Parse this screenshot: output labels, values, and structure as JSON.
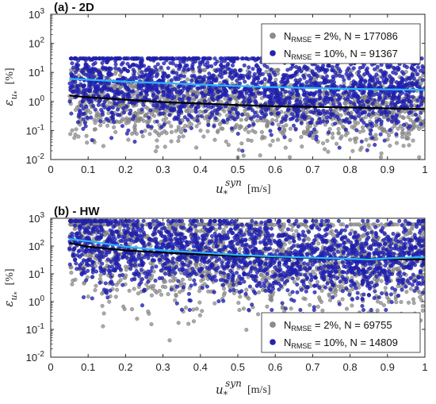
{
  "chart_data": [
    {
      "type": "scatter",
      "title": "(a) - 2D",
      "xlabel_main": "u",
      "xlabel_sub": "*",
      "xlabel_sup": "syn",
      "xlabel_unit": "[m/s]",
      "ylabel_main": "ε",
      "ylabel_sub": "u",
      "ylabel_subsub": "*",
      "ylabel_unit": "[%]",
      "xlim": [
        0,
        1
      ],
      "ylim": [
        0.01,
        1000
      ],
      "yscale": "log",
      "xticks": [
        "0",
        "0.1",
        "0.2",
        "0.3",
        "0.4",
        "0.5",
        "0.6",
        "0.7",
        "0.8",
        "0.9",
        "1"
      ],
      "yticks": [
        "10-2",
        "10-1",
        "100",
        "101",
        "102",
        "103"
      ],
      "legend_position": "top-right",
      "series": [
        {
          "name_pre": "N",
          "name_sub": "RMSE",
          "name_post": " = 2%, N = 177086",
          "color": "#8c8c8c",
          "scatter_band": {
            "x": [
              0.05,
              1.0
            ],
            "y_low": 0.012,
            "y_high": 12
          },
          "mean_line": {
            "x": [
              0.05,
              0.1,
              0.2,
              0.3,
              0.4,
              0.5,
              0.6,
              0.7,
              0.8,
              0.9,
              1.0
            ],
            "y": [
              1.6,
              1.4,
              1.15,
              0.95,
              0.85,
              0.75,
              0.68,
              0.65,
              0.62,
              0.58,
              0.55
            ]
          },
          "line_color": "#000000"
        },
        {
          "name_pre": "N",
          "name_sub": "RMSE",
          "name_post": " = 10%, N = 91367",
          "color": "#2222b8",
          "scatter_band": {
            "x": [
              0.05,
              1.0
            ],
            "y_low": 0.02,
            "y_high": 30
          },
          "mean_line": {
            "x": [
              0.05,
              0.1,
              0.2,
              0.3,
              0.4,
              0.5,
              0.6,
              0.7,
              0.8,
              0.9,
              1.0
            ],
            "y": [
              6.0,
              5.6,
              4.8,
              4.3,
              3.8,
              3.4,
              3.1,
              2.9,
              2.7,
              2.6,
              2.5
            ]
          },
          "line_color": "#2ab4ff"
        }
      ]
    },
    {
      "type": "scatter",
      "title": "(b) - HW",
      "xlabel_main": "u",
      "xlabel_sub": "*",
      "xlabel_sup": "syn",
      "xlabel_unit": "[m/s]",
      "ylabel_main": "ε",
      "ylabel_sub": "u",
      "ylabel_subsub": "*",
      "ylabel_unit": "[%]",
      "xlim": [
        0,
        1
      ],
      "ylim": [
        0.01,
        1000
      ],
      "yscale": "log",
      "xticks": [
        "0",
        "0.1",
        "0.2",
        "0.3",
        "0.4",
        "0.5",
        "0.6",
        "0.7",
        "0.8",
        "0.9",
        "1"
      ],
      "yticks": [
        "10-2",
        "10-1",
        "100",
        "101",
        "102",
        "103"
      ],
      "legend_position": "bottom-right",
      "series": [
        {
          "name_pre": "N",
          "name_sub": "RMSE",
          "name_post": " = 2%, N = 69755",
          "color": "#8c8c8c",
          "scatter_band": {
            "x": [
              0.05,
              1.0
            ],
            "y_low": 0.02,
            "y_high": 600
          },
          "mean_line": {
            "x": [
              0.05,
              0.1,
              0.2,
              0.3,
              0.4,
              0.5,
              0.6,
              0.7,
              0.8,
              0.9,
              1.0
            ],
            "y": [
              130,
              95,
              70,
              58,
              50,
              44,
              40,
              37,
              35,
              34,
              33
            ]
          },
          "line_color": "#000000"
        },
        {
          "name_pre": "N",
          "name_sub": "RMSE",
          "name_post": " = 10%, N = 14809",
          "color": "#2222b8",
          "scatter_band": {
            "x": [
              0.05,
              1.0
            ],
            "y_low": 0.5,
            "y_high": 800
          },
          "mean_line": {
            "x": [
              0.05,
              0.1,
              0.2,
              0.3,
              0.4,
              0.5,
              0.6,
              0.7,
              0.8,
              0.85,
              0.9,
              1.0
            ],
            "y": [
              180,
              150,
              95,
              70,
              58,
              48,
              42,
              38,
              35,
              33,
              36,
              40
            ]
          },
          "line_color": "#2ab4ff"
        }
      ]
    }
  ]
}
